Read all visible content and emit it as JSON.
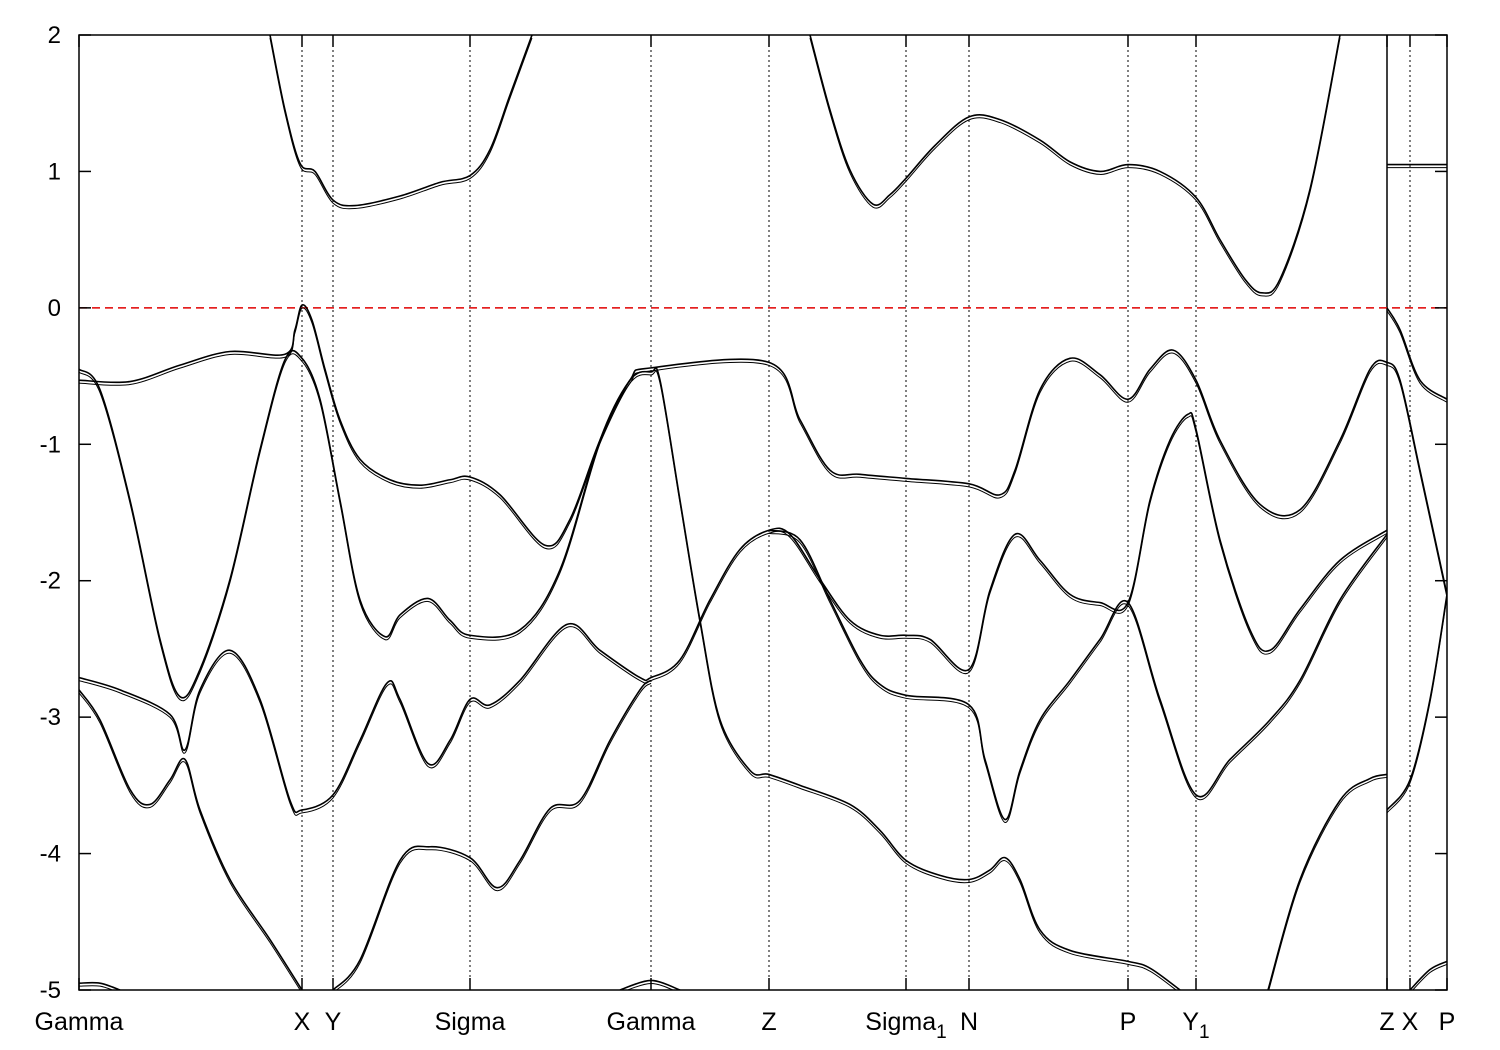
{
  "chart_data": {
    "type": "line",
    "title": "",
    "xlabel": "",
    "ylabel": "",
    "xlim": [
      0,
      13.68
    ],
    "ylim": [
      -5,
      2
    ],
    "yticks": [
      -5,
      -4,
      -3,
      -2,
      -1,
      0,
      1,
      2
    ],
    "ytick_labels": [
      "-5",
      "-4",
      "-3",
      "-2",
      "-1",
      "0",
      "1",
      "2"
    ],
    "xticks": [
      {
        "label": "Gamma",
        "sub": "",
        "x": 0
      },
      {
        "label": "X",
        "sub": "",
        "x": 2.23
      },
      {
        "label": "Y",
        "sub": "",
        "x": 2.54
      },
      {
        "label": "Sigma",
        "sub": "",
        "x": 3.91
      },
      {
        "label": "Gamma",
        "sub": "",
        "x": 5.72
      },
      {
        "label": "Z",
        "sub": "",
        "x": 6.9
      },
      {
        "label": "Sigma",
        "sub": "1",
        "x": 8.27
      },
      {
        "label": "N",
        "sub": "",
        "x": 8.9
      },
      {
        "label": "P",
        "sub": "",
        "x": 10.49
      },
      {
        "label": "Y",
        "sub": "1",
        "x": 11.17
      },
      {
        "label": "Z",
        "sub": "",
        "x": 13.08
      },
      {
        "label": "X",
        "sub": "",
        "x": 13.31
      },
      {
        "label": "P",
        "sub": "",
        "x": 13.68
      }
    ],
    "discontinuity_at": 13.08,
    "fermi_level": {
      "value": 0,
      "color": "#e00000"
    },
    "line_color": "#000000",
    "bands": [
      {
        "name": "c1",
        "points": [
          [
            1.91,
            2.0
          ],
          [
            2.06,
            1.45
          ],
          [
            2.21,
            1.06
          ],
          [
            2.36,
            1.0
          ],
          [
            2.54,
            0.79
          ],
          [
            2.76,
            0.75
          ],
          [
            3.21,
            0.82
          ],
          [
            3.61,
            0.92
          ],
          [
            3.91,
            0.97
          ],
          [
            4.11,
            1.16
          ],
          [
            4.31,
            1.56
          ],
          [
            4.53,
            2.0
          ]
        ]
      },
      {
        "name": "c2",
        "points": [
          [
            7.31,
            2.0
          ],
          [
            7.51,
            1.45
          ],
          [
            7.71,
            1.01
          ],
          [
            7.94,
            0.76
          ],
          [
            8.11,
            0.83
          ],
          [
            8.27,
            0.95
          ],
          [
            8.56,
            1.19
          ],
          [
            8.9,
            1.4
          ],
          [
            9.21,
            1.38
          ],
          [
            9.61,
            1.23
          ],
          [
            9.91,
            1.07
          ],
          [
            10.21,
            1.0
          ],
          [
            10.49,
            1.05
          ],
          [
            10.81,
            1.0
          ],
          [
            11.17,
            0.81
          ],
          [
            11.41,
            0.5
          ],
          [
            11.66,
            0.21
          ],
          [
            11.83,
            0.11
          ],
          [
            12.01,
            0.21
          ],
          [
            12.31,
            0.87
          ],
          [
            12.61,
            2.0
          ]
        ]
      },
      {
        "name": "c3",
        "points": [
          [
            13.08,
            1.05
          ],
          [
            13.68,
            1.05
          ]
        ]
      },
      {
        "name": "v1",
        "points": [
          [
            0,
            -0.53
          ],
          [
            0.51,
            -0.54
          ],
          [
            1.01,
            -0.42
          ],
          [
            1.51,
            -0.32
          ],
          [
            2.06,
            -0.34
          ],
          [
            2.16,
            -0.16
          ],
          [
            2.23,
            0.02
          ],
          [
            2.33,
            -0.09
          ],
          [
            2.46,
            -0.45
          ],
          [
            2.61,
            -0.82
          ],
          [
            2.81,
            -1.11
          ],
          [
            3.11,
            -1.26
          ],
          [
            3.41,
            -1.3
          ],
          [
            3.71,
            -1.26
          ],
          [
            3.91,
            -1.24
          ],
          [
            4.21,
            -1.37
          ],
          [
            4.66,
            -1.74
          ],
          [
            4.91,
            -1.55
          ],
          [
            5.21,
            -0.97
          ],
          [
            5.51,
            -0.53
          ],
          [
            5.72,
            -0.44
          ],
          [
            6.9,
            -0.4
          ],
          [
            7.21,
            -0.82
          ],
          [
            7.51,
            -1.19
          ],
          [
            7.81,
            -1.22
          ],
          [
            8.27,
            -1.25
          ],
          [
            8.9,
            -1.29
          ],
          [
            9.21,
            -1.37
          ],
          [
            9.36,
            -1.19
          ],
          [
            9.61,
            -0.6
          ],
          [
            9.91,
            -0.37
          ],
          [
            10.21,
            -0.49
          ],
          [
            10.49,
            -0.67
          ],
          [
            10.71,
            -0.45
          ],
          [
            10.94,
            -0.31
          ],
          [
            11.17,
            -0.53
          ],
          [
            11.41,
            -0.97
          ],
          [
            11.81,
            -1.44
          ],
          [
            12.21,
            -1.48
          ],
          [
            12.61,
            -0.97
          ],
          [
            12.91,
            -0.45
          ],
          [
            13.08,
            -0.4
          ],
          [
            13.21,
            -0.53
          ],
          [
            13.41,
            -1.19
          ],
          [
            13.68,
            -2.1
          ]
        ]
      },
      {
        "name": "v2",
        "points": [
          [
            0,
            -0.45
          ],
          [
            0.21,
            -0.6
          ],
          [
            0.51,
            -1.41
          ],
          [
            0.81,
            -2.43
          ],
          [
            1.01,
            -2.85
          ],
          [
            1.21,
            -2.65
          ],
          [
            1.51,
            -1.99
          ],
          [
            1.81,
            -1.04
          ],
          [
            2.06,
            -0.38
          ],
          [
            2.23,
            -0.37
          ],
          [
            2.41,
            -0.67
          ],
          [
            2.61,
            -1.41
          ],
          [
            2.81,
            -2.14
          ],
          [
            3.06,
            -2.41
          ],
          [
            3.21,
            -2.25
          ],
          [
            3.49,
            -2.13
          ],
          [
            3.71,
            -2.29
          ],
          [
            3.91,
            -2.4
          ],
          [
            4.41,
            -2.36
          ],
          [
            4.81,
            -1.92
          ],
          [
            5.21,
            -0.97
          ],
          [
            5.51,
            -0.53
          ],
          [
            5.72,
            -0.47
          ],
          [
            5.81,
            -0.53
          ],
          [
            6.01,
            -1.41
          ],
          [
            6.21,
            -2.29
          ],
          [
            6.41,
            -3.02
          ],
          [
            6.71,
            -3.39
          ],
          [
            6.9,
            -3.42
          ],
          [
            7.21,
            -3.5
          ],
          [
            7.71,
            -3.64
          ],
          [
            8.01,
            -3.83
          ],
          [
            8.27,
            -4.05
          ],
          [
            8.61,
            -4.16
          ],
          [
            8.9,
            -4.19
          ],
          [
            9.11,
            -4.12
          ],
          [
            9.26,
            -4.03
          ],
          [
            9.41,
            -4.19
          ],
          [
            9.61,
            -4.56
          ],
          [
            9.91,
            -4.71
          ],
          [
            10.49,
            -4.79
          ],
          [
            10.71,
            -4.84
          ],
          [
            11.01,
            -5.0
          ]
        ]
      },
      {
        "name": "v3",
        "points": [
          [
            0,
            -2.71
          ],
          [
            0.41,
            -2.8
          ],
          [
            0.91,
            -2.98
          ],
          [
            1.06,
            -3.24
          ],
          [
            1.21,
            -2.8
          ],
          [
            1.51,
            -2.51
          ],
          [
            1.81,
            -2.87
          ],
          [
            2.11,
            -3.61
          ],
          [
            2.23,
            -3.68
          ],
          [
            2.54,
            -3.57
          ],
          [
            2.81,
            -3.17
          ],
          [
            3.08,
            -2.75
          ],
          [
            3.21,
            -2.87
          ],
          [
            3.49,
            -3.34
          ],
          [
            3.71,
            -3.17
          ],
          [
            3.91,
            -2.87
          ],
          [
            4.11,
            -2.91
          ],
          [
            4.41,
            -2.73
          ],
          [
            4.88,
            -2.32
          ],
          [
            5.21,
            -2.51
          ],
          [
            5.61,
            -2.71
          ],
          [
            5.72,
            -2.71
          ],
          [
            6.01,
            -2.58
          ],
          [
            6.31,
            -2.14
          ],
          [
            6.61,
            -1.77
          ],
          [
            6.9,
            -1.63
          ],
          [
            7.11,
            -1.66
          ],
          [
            7.41,
            -1.99
          ],
          [
            7.71,
            -2.29
          ],
          [
            8.01,
            -2.4
          ],
          [
            8.27,
            -2.4
          ],
          [
            8.51,
            -2.43
          ],
          [
            8.9,
            -2.65
          ],
          [
            9.11,
            -2.07
          ],
          [
            9.36,
            -1.66
          ],
          [
            9.61,
            -1.85
          ],
          [
            9.91,
            -2.1
          ],
          [
            10.21,
            -2.16
          ],
          [
            10.49,
            -2.16
          ],
          [
            10.71,
            -1.41
          ],
          [
            10.91,
            -0.97
          ],
          [
            11.09,
            -0.78
          ],
          [
            11.17,
            -0.89
          ],
          [
            11.41,
            -1.7
          ],
          [
            11.71,
            -2.36
          ],
          [
            11.91,
            -2.51
          ],
          [
            12.21,
            -2.21
          ],
          [
            12.61,
            -1.85
          ],
          [
            13.08,
            -1.63
          ]
        ]
      },
      {
        "name": "v4",
        "points": [
          [
            6.9,
            -1.63
          ],
          [
            7.21,
            -1.7
          ],
          [
            7.51,
            -2.14
          ],
          [
            7.81,
            -2.58
          ],
          [
            8.01,
            -2.76
          ],
          [
            8.27,
            -2.84
          ],
          [
            8.9,
            -2.91
          ],
          [
            9.06,
            -3.31
          ],
          [
            9.26,
            -3.75
          ],
          [
            9.41,
            -3.39
          ],
          [
            9.61,
            -3.02
          ],
          [
            9.91,
            -2.73
          ],
          [
            10.21,
            -2.43
          ],
          [
            10.49,
            -2.16
          ],
          [
            10.81,
            -2.87
          ],
          [
            11.17,
            -3.57
          ],
          [
            11.51,
            -3.31
          ],
          [
            11.91,
            -3.02
          ],
          [
            12.21,
            -2.73
          ],
          [
            12.61,
            -2.14
          ],
          [
            13.08,
            -1.66
          ]
        ]
      },
      {
        "name": "v5",
        "points": [
          [
            0,
            -2.8
          ],
          [
            0.21,
            -3.02
          ],
          [
            0.51,
            -3.53
          ],
          [
            0.71,
            -3.64
          ],
          [
            0.91,
            -3.46
          ],
          [
            1.06,
            -3.31
          ],
          [
            1.21,
            -3.68
          ],
          [
            1.51,
            -4.19
          ],
          [
            1.91,
            -4.63
          ],
          [
            2.23,
            -5.0
          ]
        ]
      },
      {
        "name": "v6",
        "points": [
          [
            2.54,
            -5.0
          ],
          [
            2.81,
            -4.78
          ],
          [
            3.21,
            -4.05
          ],
          [
            3.51,
            -3.95
          ],
          [
            3.91,
            -4.03
          ],
          [
            4.18,
            -4.25
          ],
          [
            4.41,
            -4.05
          ],
          [
            4.71,
            -3.67
          ],
          [
            5.01,
            -3.61
          ],
          [
            5.31,
            -3.17
          ],
          [
            5.61,
            -2.8
          ],
          [
            5.72,
            -2.73
          ]
        ]
      },
      {
        "name": "v7",
        "points": [
          [
            13.08,
            0.0
          ],
          [
            13.21,
            -0.16
          ],
          [
            13.41,
            -0.53
          ],
          [
            13.68,
            -0.67
          ]
        ]
      },
      {
        "name": "v8",
        "points": [
          [
            13.08,
            -3.68
          ],
          [
            13.31,
            -3.46
          ],
          [
            13.51,
            -2.87
          ],
          [
            13.68,
            -2.1
          ]
        ]
      },
      {
        "name": "v9",
        "points": [
          [
            13.31,
            -5.0
          ],
          [
            13.51,
            -4.85
          ],
          [
            13.68,
            -4.79
          ]
        ]
      },
      {
        "name": "v10",
        "points": [
          [
            11.89,
            -5.0
          ],
          [
            12.21,
            -4.19
          ],
          [
            12.61,
            -3.61
          ],
          [
            12.91,
            -3.45
          ],
          [
            13.08,
            -3.42
          ]
        ]
      },
      {
        "name": "v11",
        "points": [
          [
            0,
            -4.95
          ],
          [
            0.21,
            -4.95
          ],
          [
            0.41,
            -5.0
          ]
        ]
      },
      {
        "name": "v12",
        "points": [
          [
            5.41,
            -5.0
          ],
          [
            5.72,
            -4.93
          ],
          [
            6.01,
            -5.0
          ]
        ]
      }
    ]
  }
}
